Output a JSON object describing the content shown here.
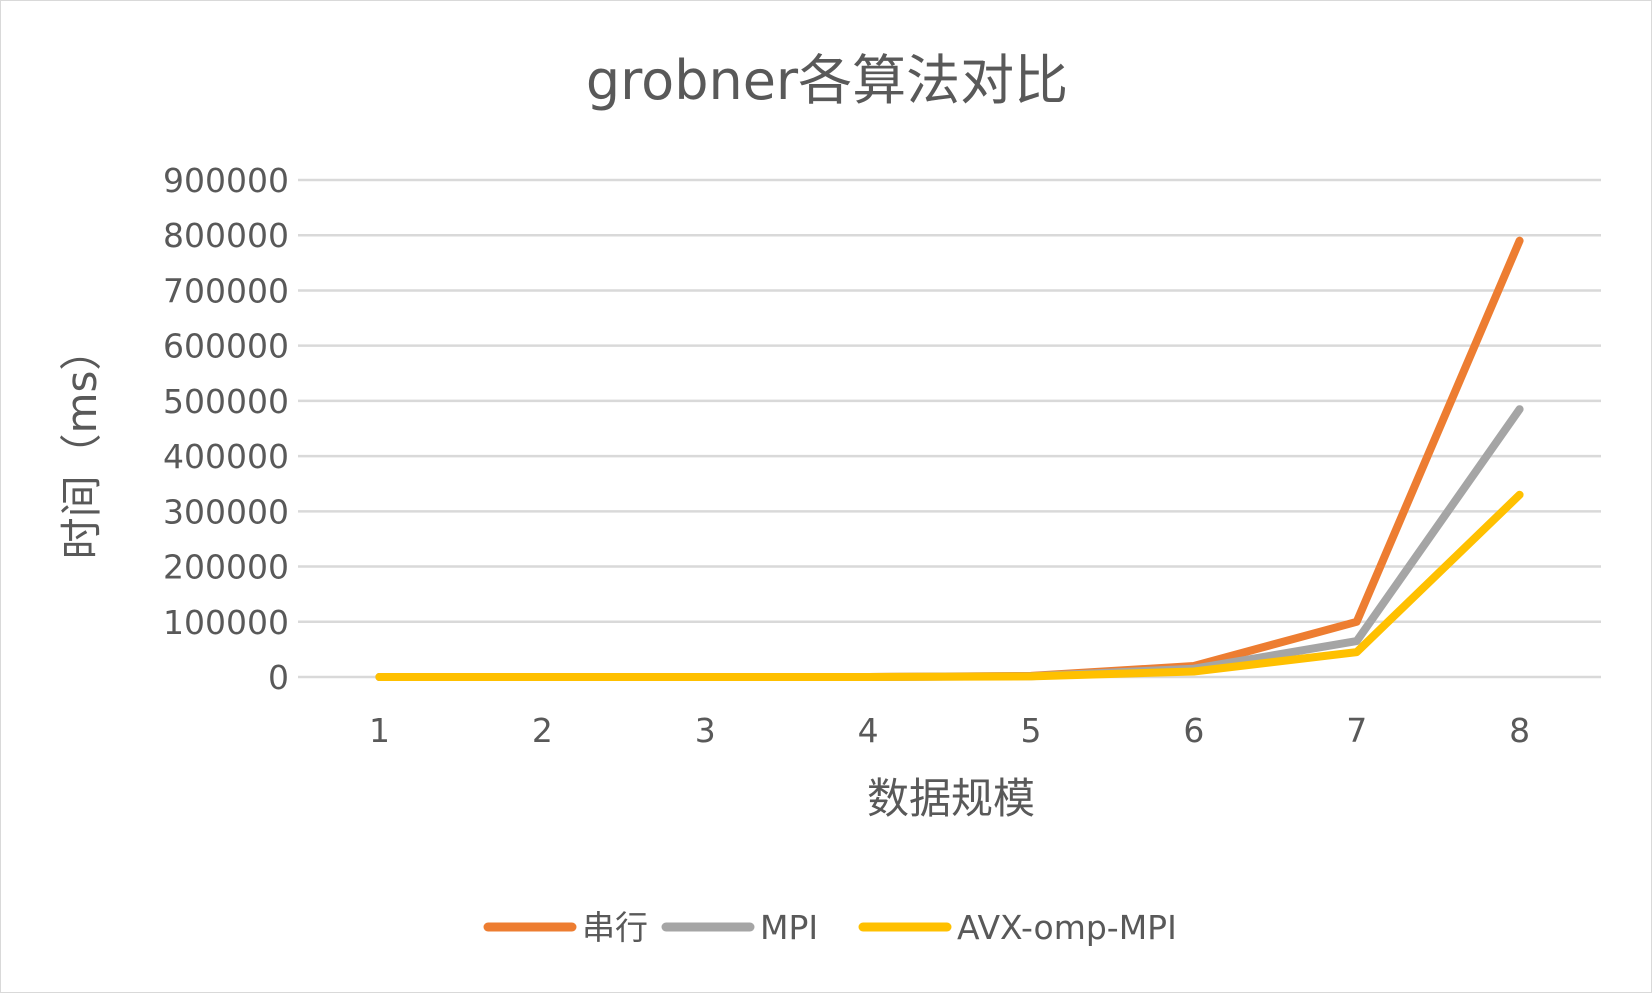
{
  "chart_data": {
    "type": "line",
    "title": "grobner各算法对比",
    "xlabel": "数据规模",
    "ylabel": "时间（ms）",
    "categories": [
      "1",
      "2",
      "3",
      "4",
      "5",
      "6",
      "7",
      "8"
    ],
    "ylim": [
      0,
      900000
    ],
    "yticks": [
      "0",
      "100000",
      "200000",
      "300000",
      "400000",
      "500000",
      "600000",
      "700000",
      "800000",
      "900000"
    ],
    "ytick_values": [
      0,
      100000,
      200000,
      300000,
      400000,
      500000,
      600000,
      700000,
      800000,
      900000
    ],
    "grid": true,
    "legend_position": "bottom",
    "series": [
      {
        "name": "串行",
        "color": "#ed7d31",
        "values": [
          0,
          0,
          0,
          0,
          2000,
          20000,
          100000,
          790000
        ]
      },
      {
        "name": "MPI",
        "color": "#a5a5a5",
        "values": [
          0,
          0,
          0,
          0,
          1500,
          15000,
          65000,
          485000
        ]
      },
      {
        "name": "AVX-omp-MPI",
        "color": "#ffc000",
        "values": [
          0,
          0,
          0,
          0,
          1000,
          10000,
          45000,
          330000
        ]
      }
    ]
  }
}
